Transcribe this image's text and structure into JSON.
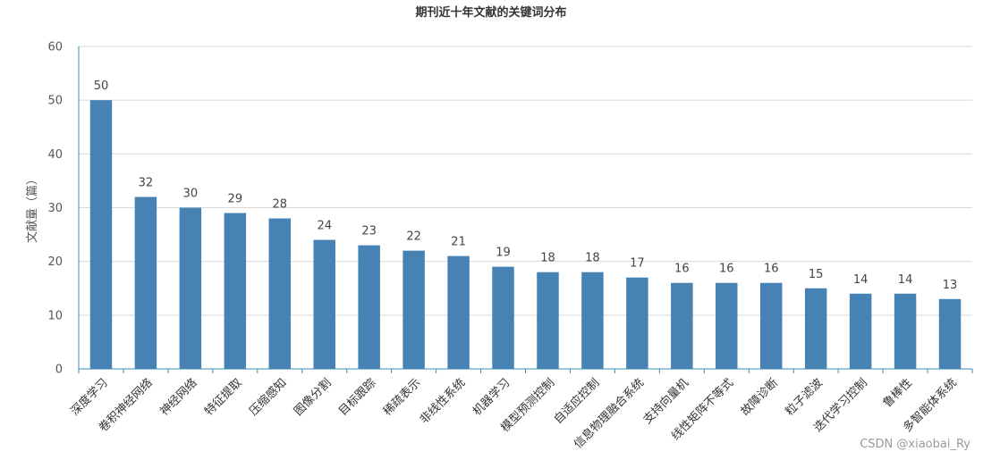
{
  "chart_data": {
    "type": "bar",
    "title": "期刊近十年文献的关键词分布",
    "xlabel": "",
    "ylabel": "文献量（篇）",
    "ylim": [
      0,
      60
    ],
    "yticks": [
      0,
      10,
      20,
      30,
      40,
      50,
      60
    ],
    "grid": true,
    "legend": "none",
    "bar_color": "#4682b4",
    "categories": [
      "深度学习",
      "卷积神经网络",
      "神经网络",
      "特征提取",
      "压缩感知",
      "图像分割",
      "目标跟踪",
      "稀疏表示",
      "非线性系统",
      "机器学习",
      "模型预测控制",
      "自适应控制",
      "信息物理融合系统",
      "支持向量机",
      "线性矩阵不等式",
      "故障诊断",
      "粒子滤波",
      "迭代学习控制",
      "鲁棒性",
      "多智能体系统"
    ],
    "values": [
      50,
      32,
      30,
      29,
      28,
      24,
      23,
      22,
      21,
      19,
      18,
      18,
      17,
      16,
      16,
      16,
      15,
      14,
      14,
      13
    ]
  },
  "watermark": "CSDN @xiaobai_Ry"
}
